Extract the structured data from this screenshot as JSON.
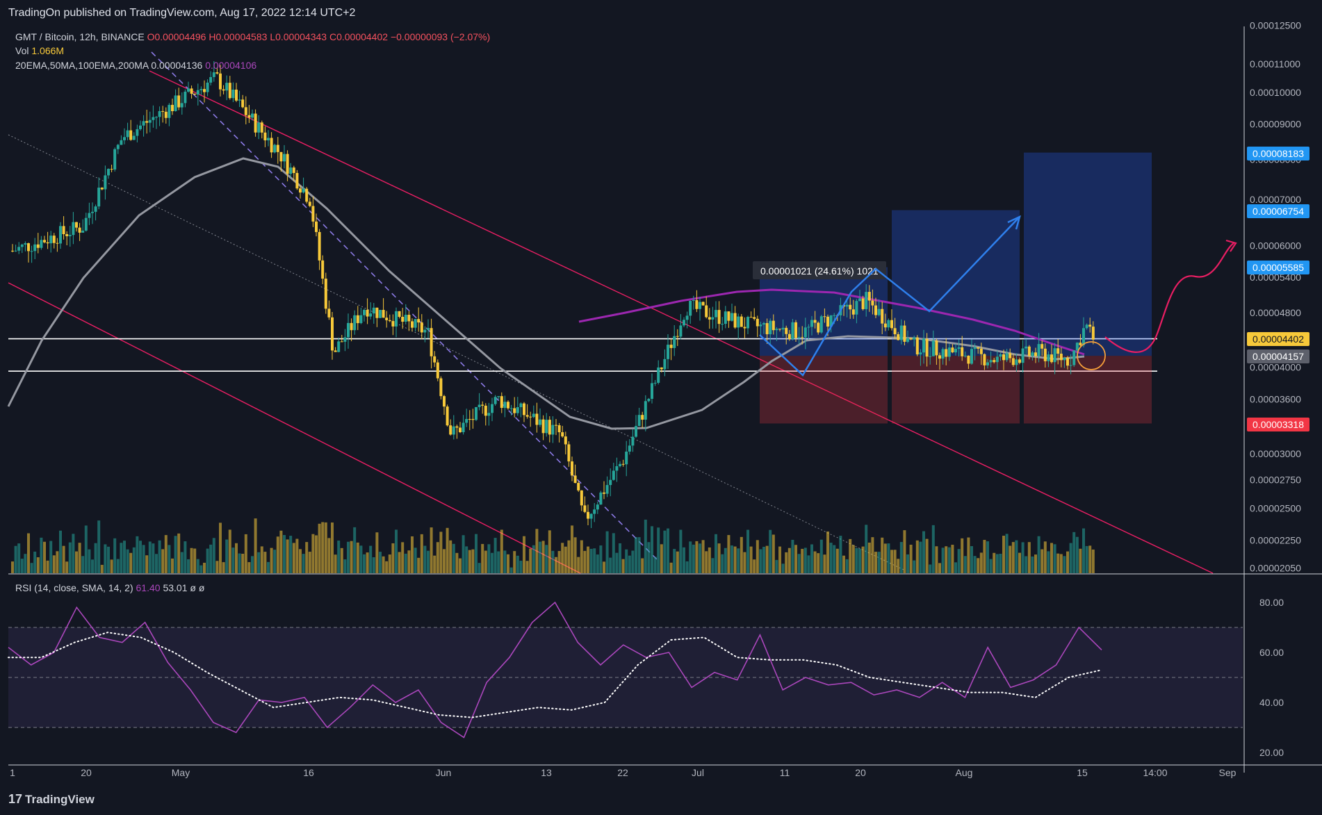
{
  "banner": "TradingOn published on TradingView.com, Aug 17, 2022 12:14 UTC+2",
  "legend": {
    "symbol": "GMT / Bitcoin, 12h, BINANCE",
    "ohlc_o": "O0.00004496",
    "ohlc_h": "H0.00004583",
    "ohlc_l": "L0.00004343",
    "ohlc_c": "C0.00004402",
    "change": "−0.00000093 (−2.07%)",
    "vol_label": "Vol",
    "vol_value": "1.066M",
    "ma_label": "20EMA,50MA,100EMA,200MA",
    "ma_value1": "0.00004136",
    "ma_value2": "0.00004106"
  },
  "rsi_legend": {
    "label": "RSI (14, close, SMA, 14, 2)",
    "v1": "61.40",
    "v2": "53.01",
    "v3": "ø",
    "v4": "ø"
  },
  "measure_label": "0.00001021 (24.61%) 1021",
  "price_tags": [
    {
      "value": "0.00008183",
      "color": "#2196f3"
    },
    {
      "value": "0.00006754",
      "color": "#2196f3"
    },
    {
      "value": "0.00005585",
      "color": "#2196f3"
    },
    {
      "value": "0.00004402",
      "color": "#f7c93a"
    },
    {
      "value": "0.00004157",
      "color": "#5d606b"
    },
    {
      "value": "0.00003318",
      "color": "#f23645"
    }
  ],
  "footer": {
    "logo_mark": "17",
    "logo_text": "TradingView"
  },
  "chart_data": [
    {
      "type": "candlestick",
      "title": "GMT / Bitcoin, 12h, BINANCE",
      "y_scale": "log",
      "y_ticks": [
        "0.00012500",
        "0.00011000",
        "0.00010000",
        "0.00009000",
        "0.00008000",
        "0.00007000",
        "0.00006000",
        "0.00005400",
        "0.00004800",
        "0.00004000",
        "0.00003600",
        "0.00003000",
        "0.00002750",
        "0.00002500",
        "0.00002250",
        "0.00002050"
      ],
      "x_ticks": [
        "1",
        "20",
        "May",
        "16",
        "Jun",
        "13",
        "22",
        "Jul",
        "11",
        "20",
        "Aug",
        "15",
        "14:00",
        "Sep"
      ],
      "approx_close_path": [
        {
          "x": "Apr 1",
          "y": 5.9e-05
        },
        {
          "x": "Apr 10",
          "y": 6.4e-05
        },
        {
          "x": "Apr 15",
          "y": 8.6e-05
        },
        {
          "x": "Apr 27",
          "y": 0.000105
        },
        {
          "x": "May 5",
          "y": 8.2e-05
        },
        {
          "x": "May 9",
          "y": 7e-05
        },
        {
          "x": "May 12",
          "y": 4.2e-05
        },
        {
          "x": "May 16",
          "y": 4.9e-05
        },
        {
          "x": "May 24",
          "y": 4.5e-05
        },
        {
          "x": "May 27",
          "y": 3.2e-05
        },
        {
          "x": "Jun 2",
          "y": 3.6e-05
        },
        {
          "x": "Jun 10",
          "y": 3.2e-05
        },
        {
          "x": "Jun 13",
          "y": 2.4e-05
        },
        {
          "x": "Jun 18",
          "y": 2.95e-05
        },
        {
          "x": "Jun 22",
          "y": 3.8e-05
        },
        {
          "x": "Jun 26",
          "y": 4.9e-05
        },
        {
          "x": "Jul 4",
          "y": 4.6e-05
        },
        {
          "x": "Jul 11",
          "y": 4.5e-05
        },
        {
          "x": "Jul 19",
          "y": 5e-05
        },
        {
          "x": "Jul 25",
          "y": 4.3e-05
        },
        {
          "x": "Aug 5",
          "y": 4.1e-05
        },
        {
          "x": "Aug 10",
          "y": 4.2e-05
        },
        {
          "x": "Aug 14",
          "y": 4.1e-05
        },
        {
          "x": "Aug 16",
          "y": 4.6e-05
        },
        {
          "x": "Aug 17",
          "y": 4.4e-05
        }
      ],
      "support_resistance": [
        4.4e-05,
        3.95e-05
      ],
      "targets": [
        8.183e-05,
        6.754e-05,
        5.585e-05
      ],
      "stop": 3.318e-05
    },
    {
      "type": "line",
      "title": "RSI (14, close, SMA, 14, 2)",
      "y_ticks": [
        "80.00",
        "60.00",
        "40.00",
        "20.00"
      ],
      "levels": [
        70,
        50,
        30
      ],
      "series": [
        {
          "name": "RSI",
          "values_approx": [
            62,
            55,
            60,
            78,
            66,
            64,
            72,
            56,
            45,
            32,
            28,
            41,
            40,
            42,
            30,
            38,
            47,
            40,
            45,
            32,
            26,
            48,
            58,
            72,
            80,
            64,
            55,
            63,
            58,
            60,
            46,
            52,
            49,
            67,
            45,
            50,
            47,
            48,
            43,
            45,
            42,
            48,
            42,
            62,
            46,
            49,
            55,
            70,
            61
          ]
        },
        {
          "name": "SMA",
          "values_approx": [
            58,
            58,
            64,
            68,
            66,
            60,
            52,
            45,
            38,
            40,
            42,
            41,
            38,
            35,
            34,
            36,
            38,
            37,
            40,
            55,
            65,
            66,
            58,
            57,
            57,
            55,
            50,
            48,
            46,
            44,
            44,
            42,
            50,
            53
          ]
        }
      ]
    }
  ]
}
